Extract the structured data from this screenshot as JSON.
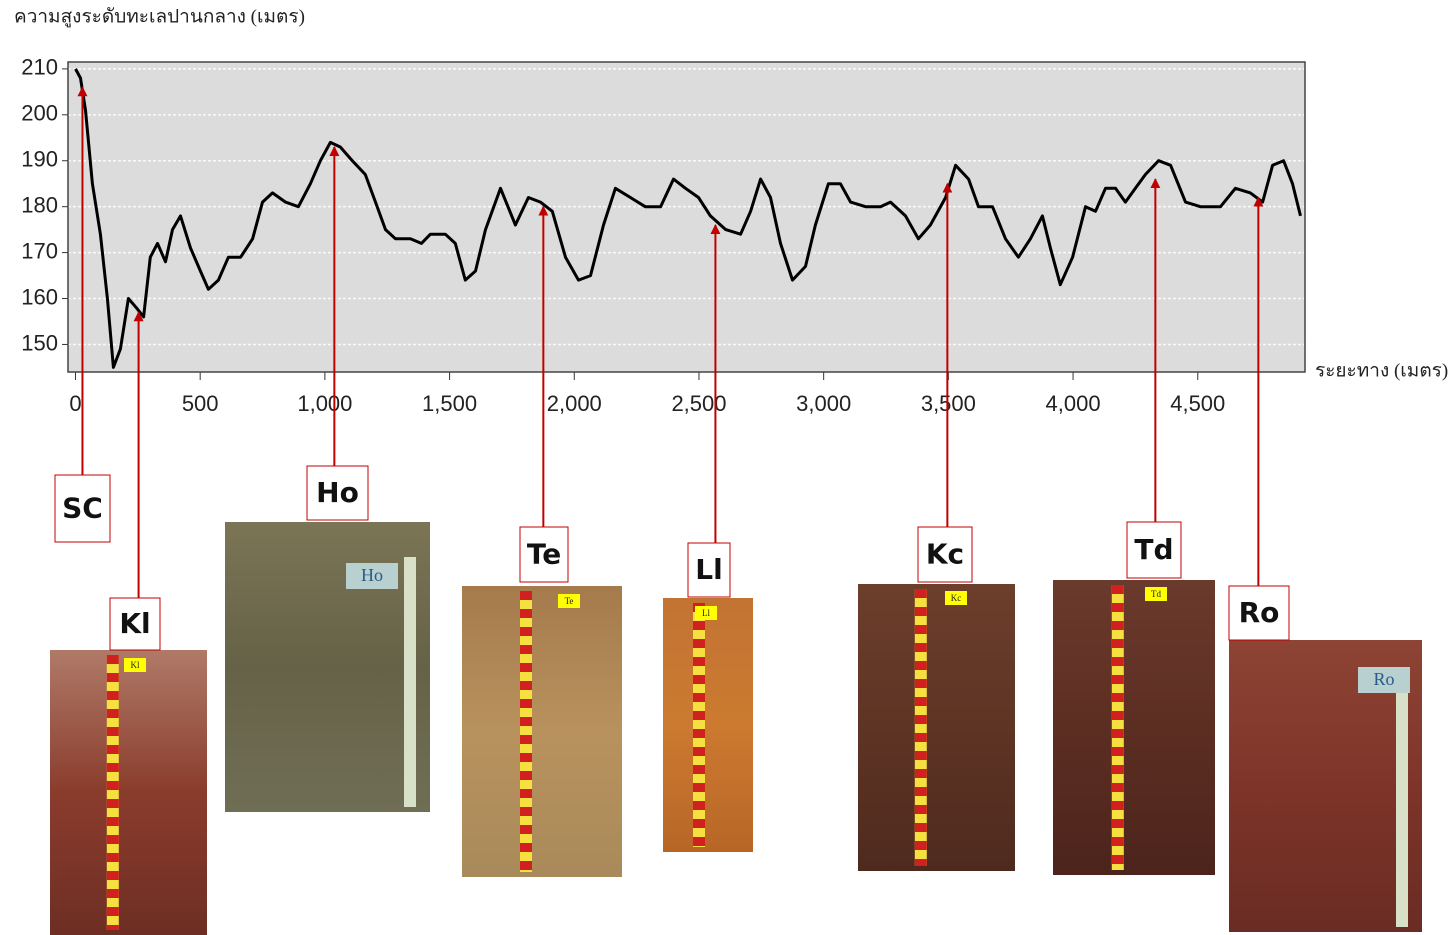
{
  "chart_data": {
    "type": "line",
    "y_label": "ความสูงระดับทะเลปานกลาง (เมตร)",
    "x_label": "ระยะทาง (เมตร)",
    "xlim": [
      -30,
      4930
    ],
    "ylim": [
      144,
      211.5
    ],
    "xticks": [
      0,
      500,
      {
        "value": 1000,
        "label": "1,000"
      },
      {
        "value": 1500,
        "label": "1,500"
      },
      {
        "value": 2000,
        "label": "2,000"
      },
      {
        "value": 2500,
        "label": "2,500"
      },
      {
        "value": 3000,
        "label": "3,000"
      },
      {
        "value": 3500,
        "label": "3,500"
      },
      {
        "value": 4000,
        "label": "4,000"
      },
      {
        "value": 4500,
        "label": "4,500"
      }
    ],
    "yticks": [
      150,
      160,
      170,
      180,
      190,
      200,
      210
    ],
    "grid": true,
    "color": "#000000",
    "arrow_color": "#c00000",
    "x": [
      0,
      20,
      40,
      68,
      100,
      128,
      152,
      180,
      212,
      244,
      273,
      300,
      329,
      361,
      389,
      421,
      461,
      501,
      533,
      573,
      613,
      662,
      710,
      750,
      790,
      842,
      894,
      942,
      982,
      1022,
      1062,
      1110,
      1162,
      1203,
      1243,
      1283,
      1343,
      1387,
      1423,
      1483,
      1523,
      1563,
      1604,
      1644,
      1704,
      1764,
      1816,
      1864,
      1912,
      1965,
      2017,
      2065,
      2117,
      2165,
      2225,
      2285,
      2346,
      2398,
      2446,
      2498,
      2546,
      2607,
      2667,
      2707,
      2747,
      2787,
      2827,
      2875,
      2927,
      2967,
      3019,
      3067,
      3108,
      3168,
      3228,
      3268,
      3328,
      3380,
      3428,
      3489,
      3529,
      3581,
      3621,
      3677,
      3729,
      3781,
      3829,
      3877,
      3909,
      3949,
      3998,
      4050,
      4090,
      4130,
      4170,
      4210,
      4250,
      4290,
      4343,
      4391,
      4451,
      4511,
      4591,
      4651,
      4711,
      4760,
      4800,
      4844,
      4880,
      4912
    ],
    "values": [
      210,
      208,
      201,
      185,
      174,
      160,
      145,
      149,
      160,
      158,
      156,
      169,
      172,
      168,
      175,
      178,
      171,
      166,
      162,
      164,
      169,
      169,
      173,
      181,
      183,
      181,
      180,
      185,
      190,
      194,
      193,
      190,
      187,
      181,
      175,
      173,
      173,
      172,
      174,
      174,
      172,
      164,
      166,
      175,
      184,
      176,
      182,
      181,
      179,
      169,
      164,
      165,
      176,
      184,
      182,
      180,
      180,
      186,
      184,
      182,
      178,
      175,
      174,
      179,
      186,
      182,
      172,
      164,
      167,
      176,
      185,
      185,
      181,
      180,
      180,
      181,
      178,
      173,
      176,
      182,
      189,
      186,
      180,
      180,
      173,
      169,
      173,
      178,
      171,
      163,
      169,
      180,
      179,
      184,
      184,
      181,
      184,
      187,
      190,
      189,
      181,
      180,
      180,
      184,
      183,
      181,
      189,
      190,
      185,
      178
    ],
    "annotations": [
      {
        "label": "SC",
        "x": 28,
        "y": 206
      },
      {
        "label": "Kl",
        "x": 253,
        "y": 157
      },
      {
        "label": "Ho",
        "x": 1038,
        "y": 193
      },
      {
        "label": "Te",
        "x": 1876,
        "y": 180
      },
      {
        "label": "Ll",
        "x": 2566,
        "y": 176
      },
      {
        "label": "Kc",
        "x": 3496,
        "y": 185
      },
      {
        "label": "Td",
        "x": 4330,
        "y": 186
      },
      {
        "label": "Ro",
        "x": 4743,
        "y": 182
      }
    ]
  }
}
